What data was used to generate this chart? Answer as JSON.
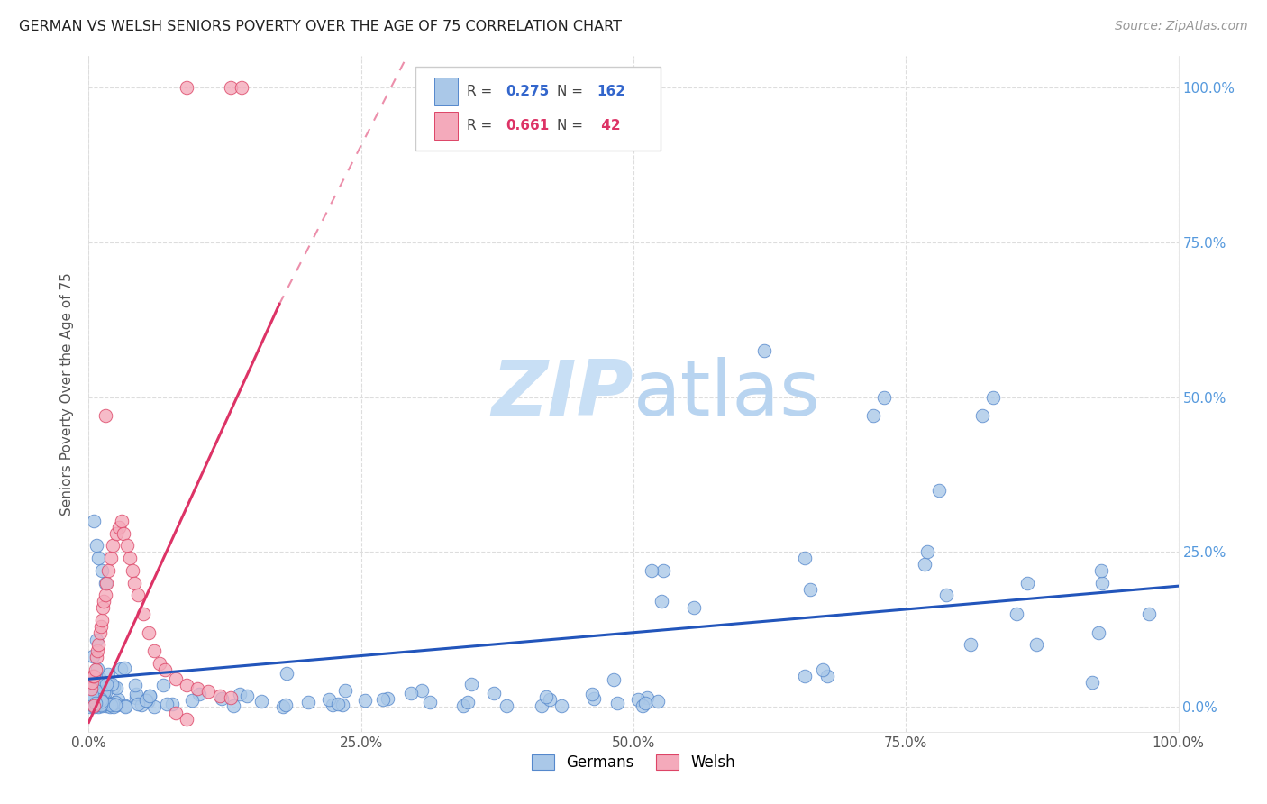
{
  "title": "GERMAN VS WELSH SENIORS POVERTY OVER THE AGE OF 75 CORRELATION CHART",
  "source": "Source: ZipAtlas.com",
  "ylabel": "Seniors Poverty Over the Age of 75",
  "watermark_zip": "ZIP",
  "watermark_atlas": "atlas",
  "xlim": [
    0,
    1.0
  ],
  "ylim": [
    -0.04,
    1.05
  ],
  "xticks": [
    0.0,
    0.25,
    0.5,
    0.75,
    1.0
  ],
  "xticklabels": [
    "0.0%",
    "25.0%",
    "50.0%",
    "75.0%",
    "100.0%"
  ],
  "yticks": [
    0.0,
    0.25,
    0.5,
    0.75,
    1.0
  ],
  "yticklabels_right": [
    "0.0%",
    "25.0%",
    "50.0%",
    "75.0%",
    "100.0%"
  ],
  "german_color": "#aac8e8",
  "welsh_color": "#f4aabb",
  "german_edge": "#5588cc",
  "welsh_edge": "#dd4466",
  "trendline_german_color": "#2255bb",
  "trendline_welsh_color": "#dd3366",
  "background_color": "#ffffff",
  "grid_color": "#dddddd",
  "source_color": "#999999",
  "watermark_zip_color": "#c8dff5",
  "watermark_atlas_color": "#b8d4f0",
  "right_tick_color": "#5599dd",
  "german_R": "0.275",
  "german_N": "162",
  "welsh_R": "0.661",
  "welsh_N": " 42",
  "legend_blue": "#3366cc",
  "legend_pink": "#dd3366"
}
